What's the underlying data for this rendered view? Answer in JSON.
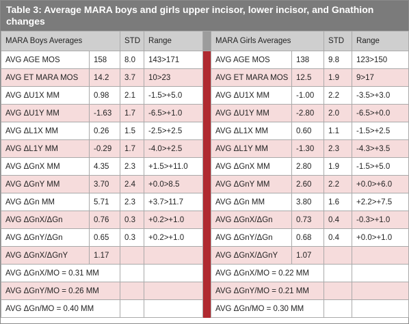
{
  "title": "Table 3: Average MARA boys and girls upper incisor, lower incisor, and Gnathion changes",
  "boys": {
    "header": [
      "MARA Boys Averages",
      "STD",
      "Range"
    ],
    "rows": [
      [
        "AVG AGE MOS",
        "158",
        "8.0",
        "143>171"
      ],
      [
        "AVG ET MARA MOS",
        "14.2",
        "3.7",
        "10>23"
      ],
      [
        "AVG ΔU1X MM",
        "0.98",
        "2.1",
        "-1.5>+5.0"
      ],
      [
        "AVG ΔU1Y MM",
        "-1.63",
        "1.7",
        "-6.5>+1.0"
      ],
      [
        "AVG ΔL1X MM",
        "0.26",
        "1.5",
        "-2.5>+2.5"
      ],
      [
        "AVG ΔL1Y MM",
        "-0.29",
        "1.7",
        "-4.0>+2.5"
      ],
      [
        "AVG ΔGnX MM",
        "4.35",
        "2.3",
        "+1.5>+11.0"
      ],
      [
        "AVG ΔGnY MM",
        "3.70",
        "2.4",
        "+0.0>8.5"
      ],
      [
        "AVG ΔGn MM",
        "5.71",
        "2.3",
        "+3.7>11.7"
      ],
      [
        "AVG ΔGnX/ΔGn",
        "0.76",
        "0.3",
        "+0.2>+1.0"
      ],
      [
        "AVG ΔGnY/ΔGn",
        "0.65",
        "0.3",
        "+0.2>+1.0"
      ],
      [
        "AVG ΔGnX/ΔGnY",
        "1.17"
      ],
      [
        "AVG ΔGnX/MO = 0.31 MM"
      ],
      [
        "AVG ΔGnY/MO = 0.26 MM"
      ],
      [
        "AVG ΔGn/MO = 0.40 MM"
      ]
    ]
  },
  "girls": {
    "header": [
      "MARA Girls Averages",
      "STD",
      "Range"
    ],
    "rows": [
      [
        "AVG AGE MOS",
        "138",
        "9.8",
        "123>150"
      ],
      [
        "AVG ET MARA MOS",
        "12.5",
        "1.9",
        "9>17"
      ],
      [
        "AVG ΔU1X MM",
        "-1.00",
        "2.2",
        "-3.5>+3.0"
      ],
      [
        "AVG ΔU1Y MM",
        "-2.80",
        "2.0",
        "-6.5>+0.0"
      ],
      [
        "AVG ΔL1X MM",
        "0.60",
        "1.1",
        "-1.5>+2.5"
      ],
      [
        "AVG ΔL1Y MM",
        "-1.30",
        "2.3",
        "-4.3>+3.5"
      ],
      [
        "AVG ΔGnX MM",
        "2.80",
        "1.9",
        "-1.5>+5.0"
      ],
      [
        "AVG ΔGnY MM",
        "2.60",
        "2.2",
        "+0.0>+6.0"
      ],
      [
        "AVG ΔGn MM",
        "3.80",
        "1.6",
        "+2.2>+7.5"
      ],
      [
        "AVG ΔGnX/ΔGn",
        "0.73",
        "0.4",
        "-0.3>+1.0"
      ],
      [
        "AVG ΔGnY/ΔGn",
        "0.68",
        "0.4",
        "+0.0>+1.0"
      ],
      [
        "AVG ΔGnX/ΔGnY",
        "1.07"
      ],
      [
        "AVG ΔGnX/MO = 0.22 MM"
      ],
      [
        "AVG ΔGnY/MO = 0.21 MM"
      ],
      [
        "AVG ΔGn/MO = 0.30 MM"
      ]
    ]
  }
}
